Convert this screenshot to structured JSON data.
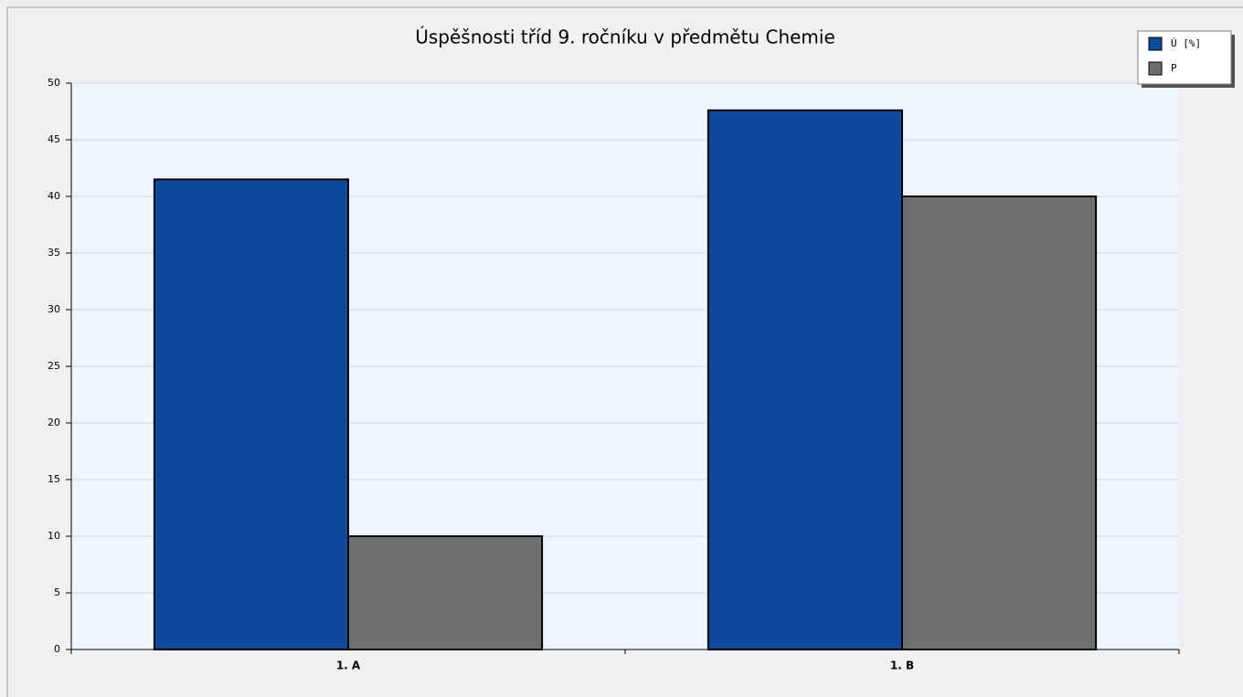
{
  "chart_data": {
    "type": "bar",
    "title": "Úspěšnosti tříd 9. ročníku v předmětu Chemie",
    "categories": [
      "1. A",
      "1. B"
    ],
    "series": [
      {
        "name": "Ú [%]",
        "color": "#0d4a9e",
        "values": [
          41.5,
          47.6
        ]
      },
      {
        "name": "P",
        "color": "#6e6e70",
        "values": [
          10,
          40
        ]
      }
    ],
    "ylim": [
      0,
      50
    ],
    "yticks": [
      0,
      5,
      10,
      15,
      20,
      25,
      30,
      35,
      40,
      45,
      50
    ],
    "grid": true,
    "legend": "top-right"
  }
}
